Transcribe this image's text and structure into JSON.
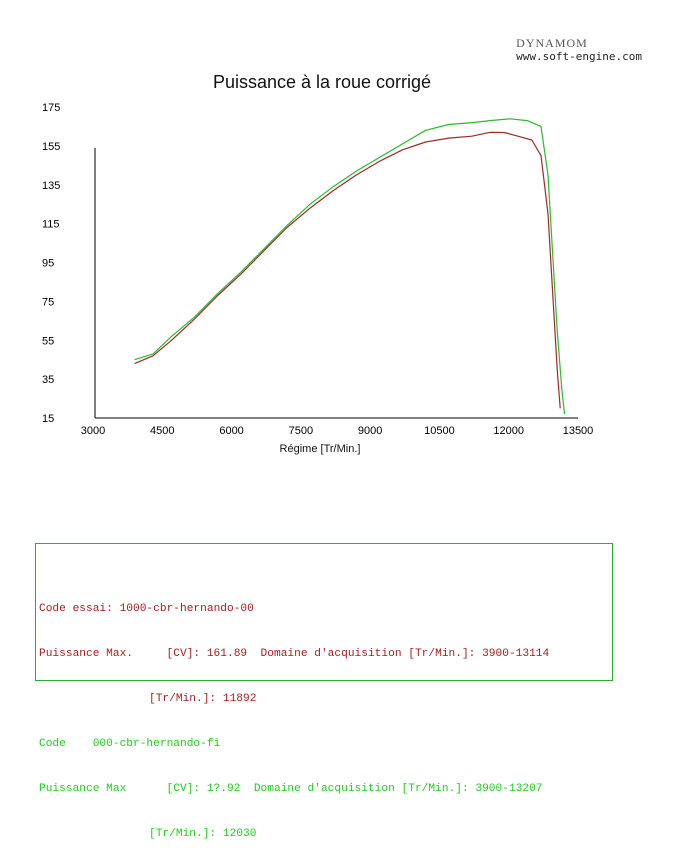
{
  "brand": {
    "line1": "DYNAMOM",
    "line2": "www.soft-engine.com"
  },
  "chart_data": {
    "type": "line",
    "title": "Puissance à la roue corrigé",
    "xlabel": "Régime [Tr/Min.]",
    "ylabel": "",
    "xlim": [
      3000,
      13500
    ],
    "ylim": [
      15,
      175
    ],
    "xticks": [
      "3000",
      "4500",
      "6000",
      "7500",
      "9000",
      "10500",
      "12000",
      "13500"
    ],
    "yticks": [
      "175",
      "155",
      "135",
      "115",
      "95",
      "75",
      "55",
      "35",
      "15"
    ],
    "grid": false,
    "series": [
      {
        "color": "#9b2a2a",
        "x": [
          3900,
          4300,
          4700,
          5200,
          5700,
          6200,
          6700,
          7200,
          7700,
          8200,
          8700,
          9200,
          9700,
          10200,
          10700,
          11200,
          11600,
          11900,
          12200,
          12500,
          12700,
          12850,
          12950,
          13050,
          13114
        ],
        "y": [
          43,
          47,
          55,
          66,
          78,
          89,
          101,
          113,
          123,
          132,
          140,
          147,
          153,
          157,
          159,
          160,
          162,
          161.89,
          160,
          158,
          150,
          120,
          80,
          40,
          20
        ]
      },
      {
        "color": "#2db82d",
        "x": [
          3900,
          4300,
          4700,
          5200,
          5700,
          6200,
          6700,
          7200,
          7700,
          8200,
          8700,
          9200,
          9700,
          10200,
          10700,
          11200,
          11600,
          12030,
          12400,
          12700,
          12850,
          12950,
          13050,
          13150,
          13207
        ],
        "y": [
          45,
          48,
          57,
          67,
          79,
          90,
          102,
          114,
          125,
          134,
          142,
          149,
          156,
          163,
          166,
          167,
          168,
          168.92,
          168,
          165,
          140,
          100,
          60,
          30,
          17
        ]
      }
    ]
  },
  "info": {
    "r1_label": "Code essai",
    "r1_value": "1000-cbr-hernando-00",
    "r2": "Puissance Max.     [CV]: 161.89  Domaine d'acquisition [Tr/Min.]: 3900-13114",
    "r3": "[Tr/Min.]: 11892",
    "g1_label": "Code",
    "g1_value": "000-cbr-hernando-fi",
    "g2": "Puissance Max      [CV]: 1?.92  Domaine d'acquisition [Tr/Min.]: 3900-13207",
    "g3": "[Tr/Min.]: 12030"
  }
}
